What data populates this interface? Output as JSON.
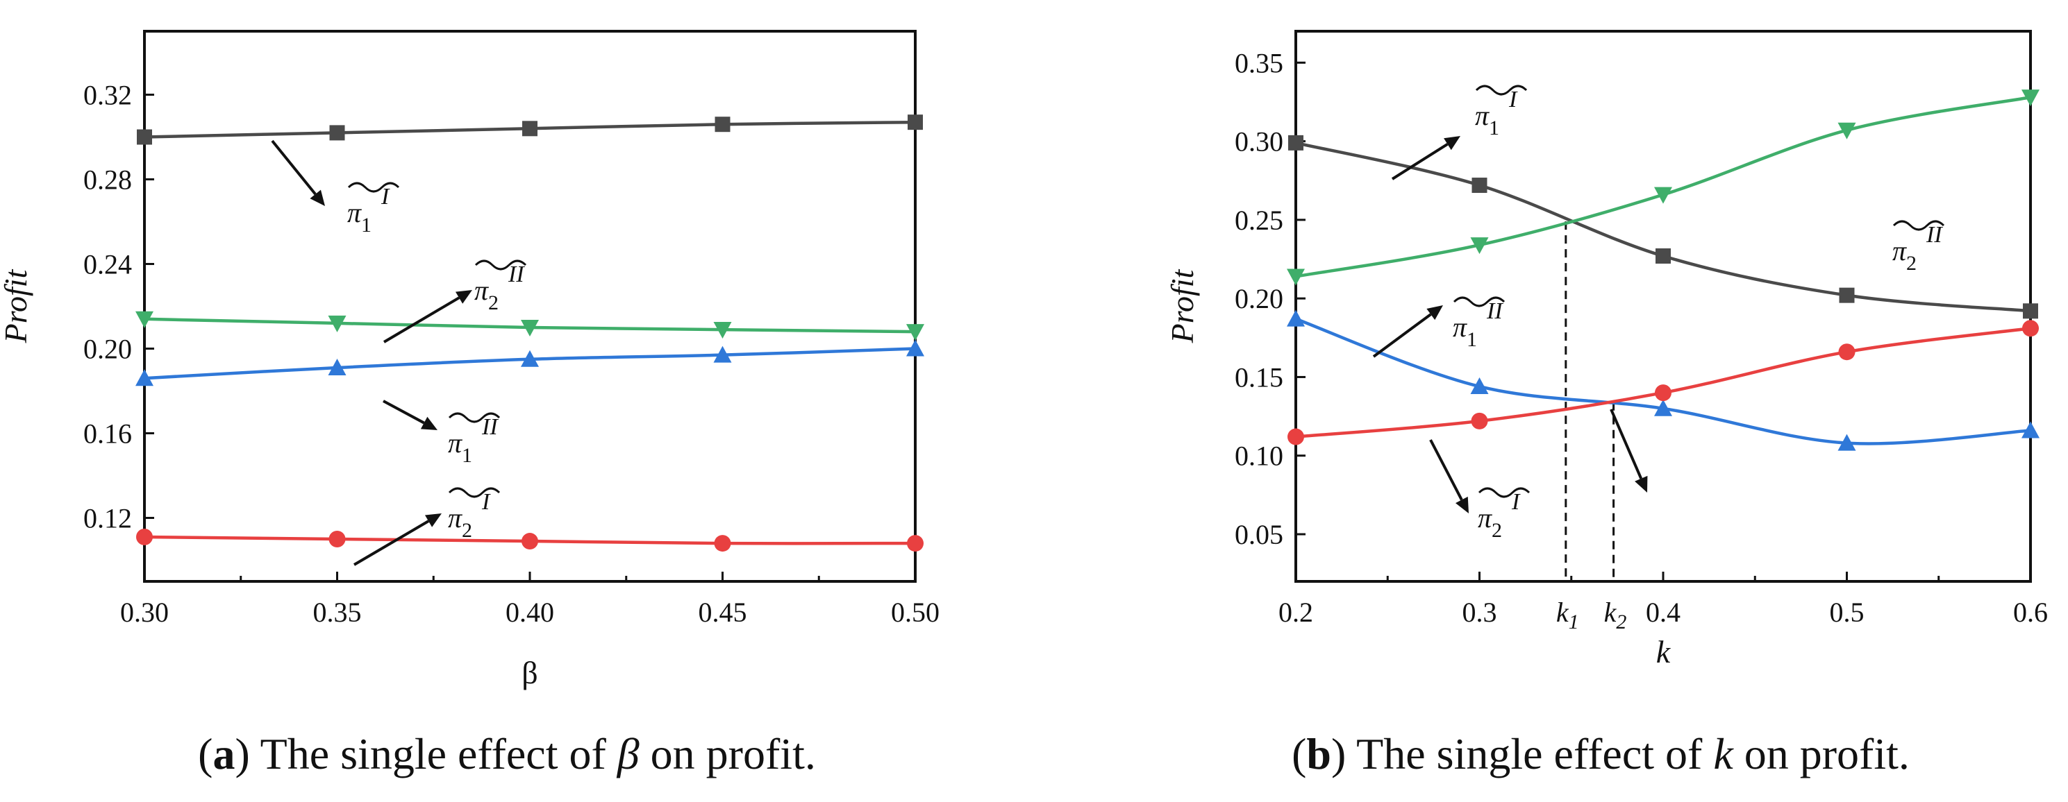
{
  "captions": {
    "a": {
      "tag": "a",
      "text_before": "The single effect of",
      "sym": "β",
      "text_after": "on profit."
    },
    "b": {
      "tag": "b",
      "text_before": "The single effect of",
      "sym": "k",
      "text_after": "on profit."
    }
  },
  "colors": {
    "black": "#4a4a4a",
    "green": "#3fae6a",
    "blue": "#2f78d8",
    "red": "#e84040"
  },
  "chart_data": [
    {
      "type": "line",
      "id": "a",
      "xlabel": "β",
      "ylabel": "Profit",
      "xlim": [
        0.3,
        0.5
      ],
      "ylim": [
        0.09,
        0.35
      ],
      "xticks": [
        0.3,
        0.35,
        0.4,
        0.45,
        0.5
      ],
      "xtick_labels": [
        "0.30",
        "0.35",
        "0.40",
        "0.45",
        "0.50"
      ],
      "yticks": [
        0.12,
        0.16,
        0.2,
        0.24,
        0.28,
        0.32
      ],
      "ytick_labels": [
        "0.12",
        "0.16",
        "0.20",
        "0.24",
        "0.28",
        "0.32"
      ],
      "series": [
        {
          "name": "π1~I",
          "color": "black",
          "marker": "square",
          "x": [
            0.3,
            0.35,
            0.4,
            0.45,
            0.5
          ],
          "values": [
            0.3,
            0.302,
            0.304,
            0.306,
            0.307
          ]
        },
        {
          "name": "π2~II",
          "color": "green",
          "marker": "triangle-down",
          "x": [
            0.3,
            0.35,
            0.4,
            0.45,
            0.5
          ],
          "values": [
            0.214,
            0.212,
            0.21,
            0.209,
            0.208
          ]
        },
        {
          "name": "π1~II",
          "color": "blue",
          "marker": "triangle-up",
          "x": [
            0.3,
            0.35,
            0.4,
            0.45,
            0.5
          ],
          "values": [
            0.186,
            0.191,
            0.195,
            0.197,
            0.2
          ]
        },
        {
          "name": "π2~I",
          "color": "red",
          "marker": "circle",
          "x": [
            0.3,
            0.35,
            0.4,
            0.45,
            0.5
          ],
          "values": [
            0.111,
            0.11,
            0.109,
            0.108,
            0.108
          ]
        }
      ],
      "annotations": [
        {
          "series": "π1~I",
          "base": "π",
          "sub": "1",
          "sup": "I"
        },
        {
          "series": "π2~II",
          "base": "π",
          "sub": "2",
          "sup": "II"
        },
        {
          "series": "π1~II",
          "base": "π",
          "sub": "1",
          "sup": "II"
        },
        {
          "series": "π2~I",
          "base": "π",
          "sub": "2",
          "sup": "I"
        }
      ]
    },
    {
      "type": "line",
      "id": "b",
      "xlabel": "k",
      "ylabel": "Profit",
      "xlim": [
        0.2,
        0.6
      ],
      "ylim": [
        0.02,
        0.37
      ],
      "xticks": [
        0.2,
        0.3,
        0.4,
        0.5,
        0.6
      ],
      "xtick_labels": [
        "0.2",
        "0.3",
        "0.4",
        "0.5",
        "0.6"
      ],
      "yticks": [
        0.05,
        0.1,
        0.15,
        0.2,
        0.25,
        0.3,
        0.35
      ],
      "ytick_labels": [
        "0.05",
        "0.10",
        "0.15",
        "0.20",
        "0.25",
        "0.30",
        "0.35"
      ],
      "series": [
        {
          "name": "π1~I",
          "color": "black",
          "marker": "square",
          "x": [
            0.2,
            0.3,
            0.4,
            0.5,
            0.6
          ],
          "values": [
            0.299,
            0.272,
            0.227,
            0.202,
            0.192
          ]
        },
        {
          "name": "π2~II",
          "color": "green",
          "marker": "triangle-down",
          "x": [
            0.2,
            0.3,
            0.4,
            0.5,
            0.6
          ],
          "values": [
            0.214,
            0.234,
            0.266,
            0.307,
            0.328
          ]
        },
        {
          "name": "π1~II",
          "color": "blue",
          "marker": "triangle-up",
          "x": [
            0.2,
            0.3,
            0.4,
            0.5,
            0.6
          ],
          "values": [
            0.187,
            0.144,
            0.13,
            0.108,
            0.116
          ]
        },
        {
          "name": "π2~I",
          "color": "red",
          "marker": "circle",
          "x": [
            0.2,
            0.3,
            0.4,
            0.5,
            0.6
          ],
          "values": [
            0.112,
            0.122,
            0.14,
            0.166,
            0.181
          ]
        }
      ],
      "annotations": [
        {
          "series": "π1~I",
          "base": "π",
          "sub": "1",
          "sup": "I"
        },
        {
          "series": "π2~II",
          "base": "π",
          "sub": "2",
          "sup": "II"
        },
        {
          "series": "π1~II",
          "base": "π",
          "sub": "1",
          "sup": "II"
        },
        {
          "series": "π2~I",
          "base": "π",
          "sub": "2",
          "sup": "I"
        }
      ],
      "reference_lines": [
        {
          "label": "k",
          "sub": "1",
          "x": 0.347,
          "y": 0.249
        },
        {
          "label": "k",
          "sub": "2",
          "x": 0.373,
          "y": 0.134
        }
      ]
    }
  ]
}
